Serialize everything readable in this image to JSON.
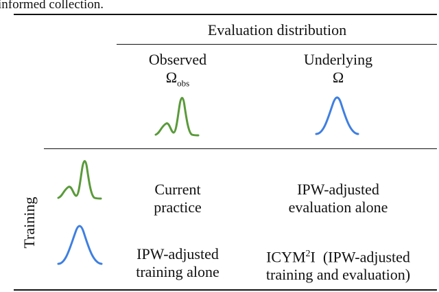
{
  "caption_fragment": "informed collection.",
  "header": {
    "group": "Evaluation distribution",
    "columns": [
      {
        "name": "Observed",
        "symbol": "Ω",
        "subscript": "obs"
      },
      {
        "name": "Underlying",
        "symbol": "Ω"
      }
    ]
  },
  "row_group": "Training",
  "cells": {
    "r1c1": [
      "Current",
      "practice"
    ],
    "r1c2": [
      "IPW-adjusted",
      "evaluation alone"
    ],
    "r2c1": [
      "IPW-adjusted",
      "training alone"
    ],
    "r2c2": {
      "line1_prefix": "ICYM",
      "line1_sup": "2",
      "line1_suffix": "I  (IPW-adjusted",
      "line2": "training and evaluation)"
    }
  },
  "colors": {
    "observed_curve": "#5a9a3a",
    "underlying_curve": "#3f7fe0"
  },
  "icons": [
    "observed-distribution-icon",
    "underlying-distribution-icon"
  ]
}
